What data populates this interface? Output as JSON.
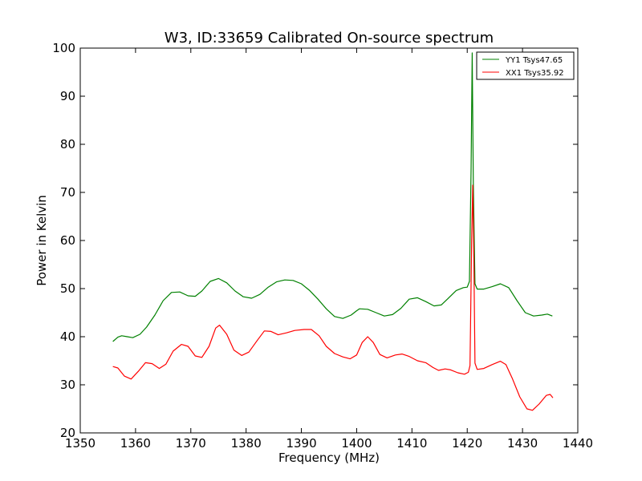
{
  "chart_data": {
    "type": "line",
    "title": "W3, ID:33659 Calibrated On-source spectrum",
    "xlabel": "Frequency (MHz)",
    "ylabel": "Power in Kelvin",
    "xlim": [
      1350,
      1440
    ],
    "ylim": [
      20,
      100
    ],
    "xticks": [
      1350,
      1360,
      1370,
      1380,
      1390,
      1400,
      1410,
      1420,
      1430,
      1440
    ],
    "yticks": [
      20,
      30,
      40,
      50,
      60,
      70,
      80,
      90,
      100
    ],
    "grid": false,
    "legend_position": "top-right",
    "series": [
      {
        "name": "YY1 Tsys47.65",
        "color": "#008000",
        "points": [
          [
            1355.9,
            39.0
          ],
          [
            1356.8,
            39.9
          ],
          [
            1357.5,
            40.2
          ],
          [
            1358.5,
            40.0
          ],
          [
            1359.5,
            39.8
          ],
          [
            1360.8,
            40.5
          ],
          [
            1362.0,
            42.0
          ],
          [
            1363.5,
            44.5
          ],
          [
            1365.0,
            47.5
          ],
          [
            1366.5,
            49.2
          ],
          [
            1368.0,
            49.3
          ],
          [
            1369.5,
            48.5
          ],
          [
            1370.8,
            48.4
          ],
          [
            1372.0,
            49.5
          ],
          [
            1373.5,
            51.5
          ],
          [
            1375.0,
            52.1
          ],
          [
            1376.5,
            51.2
          ],
          [
            1378.0,
            49.5
          ],
          [
            1379.5,
            48.3
          ],
          [
            1381.0,
            48.0
          ],
          [
            1382.5,
            48.8
          ],
          [
            1384.0,
            50.3
          ],
          [
            1385.5,
            51.4
          ],
          [
            1387.0,
            51.8
          ],
          [
            1388.5,
            51.7
          ],
          [
            1390.0,
            51.0
          ],
          [
            1391.5,
            49.6
          ],
          [
            1393.0,
            47.8
          ],
          [
            1394.5,
            45.8
          ],
          [
            1396.0,
            44.2
          ],
          [
            1397.5,
            43.8
          ],
          [
            1399.0,
            44.5
          ],
          [
            1400.0,
            45.4
          ],
          [
            1400.5,
            45.8
          ],
          [
            1402.0,
            45.7
          ],
          [
            1403.5,
            45.0
          ],
          [
            1405.0,
            44.3
          ],
          [
            1406.5,
            44.6
          ],
          [
            1408.0,
            45.9
          ],
          [
            1409.5,
            47.8
          ],
          [
            1411.0,
            48.1
          ],
          [
            1412.5,
            47.3
          ],
          [
            1414.0,
            46.4
          ],
          [
            1415.3,
            46.6
          ],
          [
            1416.5,
            47.9
          ],
          [
            1418.0,
            49.6
          ],
          [
            1419.3,
            50.2
          ],
          [
            1420.0,
            50.3
          ],
          [
            1420.4,
            51.5
          ],
          [
            1420.7,
            75.0
          ],
          [
            1420.9,
            99.0
          ],
          [
            1421.1,
            72.0
          ],
          [
            1421.4,
            51.0
          ],
          [
            1421.8,
            49.9
          ],
          [
            1423.0,
            49.9
          ],
          [
            1424.5,
            50.4
          ],
          [
            1426.0,
            51.0
          ],
          [
            1427.5,
            50.2
          ],
          [
            1429.0,
            47.5
          ],
          [
            1430.5,
            45.0
          ],
          [
            1432.0,
            44.3
          ],
          [
            1433.5,
            44.5
          ],
          [
            1434.5,
            44.7
          ],
          [
            1435.4,
            44.3
          ]
        ]
      },
      {
        "name": "XX1 Tsys35.92",
        "color": "#ff0000",
        "points": [
          [
            1355.9,
            33.8
          ],
          [
            1356.8,
            33.5
          ],
          [
            1358.0,
            31.8
          ],
          [
            1359.2,
            31.2
          ],
          [
            1360.5,
            32.8
          ],
          [
            1361.8,
            34.6
          ],
          [
            1363.0,
            34.4
          ],
          [
            1364.3,
            33.4
          ],
          [
            1365.5,
            34.3
          ],
          [
            1366.8,
            37.0
          ],
          [
            1368.3,
            38.4
          ],
          [
            1369.5,
            38.0
          ],
          [
            1370.8,
            36.0
          ],
          [
            1372.0,
            35.7
          ],
          [
            1373.3,
            38.0
          ],
          [
            1374.5,
            41.8
          ],
          [
            1375.2,
            42.4
          ],
          [
            1376.5,
            40.5
          ],
          [
            1377.8,
            37.2
          ],
          [
            1379.2,
            36.1
          ],
          [
            1380.5,
            36.8
          ],
          [
            1382.0,
            39.2
          ],
          [
            1383.3,
            41.2
          ],
          [
            1384.5,
            41.1
          ],
          [
            1385.8,
            40.4
          ],
          [
            1387.3,
            40.8
          ],
          [
            1388.8,
            41.3
          ],
          [
            1390.5,
            41.5
          ],
          [
            1391.8,
            41.5
          ],
          [
            1393.2,
            40.2
          ],
          [
            1394.5,
            38.0
          ],
          [
            1396.0,
            36.5
          ],
          [
            1397.5,
            35.8
          ],
          [
            1398.8,
            35.4
          ],
          [
            1400.0,
            36.2
          ],
          [
            1401.0,
            38.8
          ],
          [
            1402.0,
            40.0
          ],
          [
            1403.0,
            38.8
          ],
          [
            1404.2,
            36.3
          ],
          [
            1405.5,
            35.6
          ],
          [
            1407.0,
            36.2
          ],
          [
            1408.2,
            36.4
          ],
          [
            1409.5,
            35.9
          ],
          [
            1411.0,
            35.0
          ],
          [
            1412.5,
            34.6
          ],
          [
            1413.8,
            33.6
          ],
          [
            1414.8,
            33.0
          ],
          [
            1416.0,
            33.3
          ],
          [
            1417.0,
            33.1
          ],
          [
            1418.3,
            32.5
          ],
          [
            1419.5,
            32.2
          ],
          [
            1420.2,
            32.6
          ],
          [
            1420.5,
            34.0
          ],
          [
            1420.8,
            60.0
          ],
          [
            1421.0,
            71.5
          ],
          [
            1421.2,
            56.0
          ],
          [
            1421.4,
            34.5
          ],
          [
            1421.8,
            33.2
          ],
          [
            1423.0,
            33.4
          ],
          [
            1424.5,
            34.2
          ],
          [
            1426.0,
            34.9
          ],
          [
            1427.0,
            34.2
          ],
          [
            1428.2,
            31.2
          ],
          [
            1429.5,
            27.5
          ],
          [
            1430.8,
            25.0
          ],
          [
            1431.8,
            24.7
          ],
          [
            1433.0,
            26.0
          ],
          [
            1434.3,
            27.8
          ],
          [
            1435.0,
            28.0
          ],
          [
            1435.5,
            27.3
          ]
        ]
      }
    ]
  }
}
